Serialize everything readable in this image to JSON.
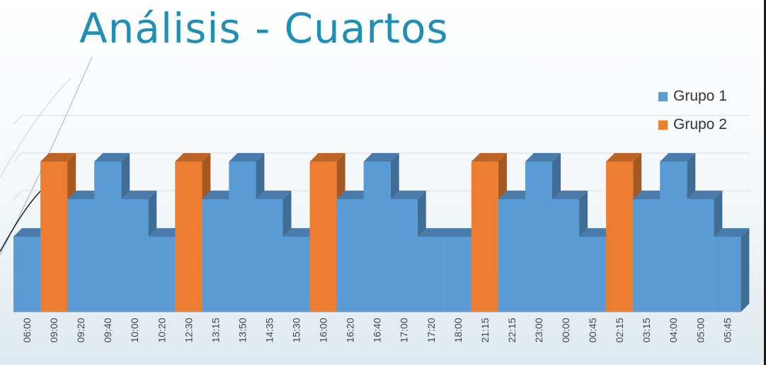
{
  "page": {
    "title": "Análisis - Cuartos"
  },
  "colors": {
    "title": "#1f8fb5",
    "grupo1": "#5b9bd5",
    "grupo2": "#ed7d31"
  },
  "chart_data": {
    "type": "bar",
    "style": "3d-column",
    "title": "",
    "xlabel": "",
    "ylabel": "",
    "ylim": [
      0,
      5
    ],
    "grid": true,
    "legend_position": "right",
    "categories": [
      "06:00",
      "09:00",
      "09:20",
      "09:40",
      "10:00",
      "10:20",
      "12:30",
      "13:15",
      "13:50",
      "14:35",
      "15:30",
      "16:00",
      "16:20",
      "16:40",
      "17:00",
      "17:20",
      "18:00",
      "21:15",
      "22:15",
      "23:00",
      "00:00",
      "00:45",
      "02:15",
      "03:15",
      "04:00",
      "05:00",
      "05:45"
    ],
    "series": [
      {
        "name": "Grupo 1",
        "color": "#5b9bd5",
        "values": [
          2,
          0,
          3,
          4,
          3,
          2,
          0,
          3,
          4,
          3,
          2,
          0,
          3,
          4,
          3,
          2,
          2,
          0,
          3,
          4,
          3,
          2,
          0,
          3,
          4,
          3,
          2
        ]
      },
      {
        "name": "Grupo 2",
        "color": "#ed7d31",
        "values": [
          0,
          4,
          0,
          0,
          0,
          0,
          4,
          0,
          0,
          0,
          0,
          4,
          0,
          0,
          0,
          0,
          0,
          4,
          0,
          0,
          0,
          0,
          4,
          0,
          0,
          0,
          0
        ]
      }
    ]
  }
}
